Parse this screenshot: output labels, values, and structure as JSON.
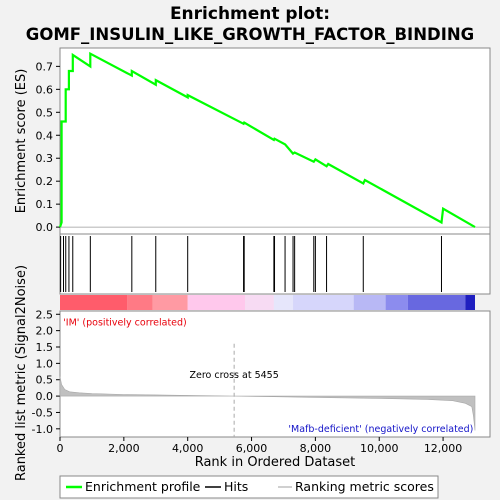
{
  "chart_data": {
    "type": "line",
    "title_line1": "Enrichment plot:",
    "title_line2": "GOMF_INSULIN_LIKE_GROWTH_FACTOR_BINDING",
    "top_panel": {
      "ylabel": "Enrichment score (ES)",
      "ylim": [
        -0.03,
        0.78
      ],
      "yticks": [
        "0.0",
        "0.1",
        "0.2",
        "0.3",
        "0.4",
        "0.5",
        "0.6",
        "0.7"
      ],
      "ytick_values": [
        0.0,
        0.1,
        0.2,
        0.3,
        0.4,
        0.5,
        0.6,
        0.7
      ],
      "series": [
        {
          "name": "Enrichment profile",
          "color": "#00ff00",
          "x": [
            0,
            50,
            50,
            180,
            180,
            280,
            280,
            400,
            400,
            950,
            950,
            2250,
            2250,
            3000,
            3000,
            4000,
            4000,
            5750,
            5770,
            6700,
            6720,
            7050,
            7300,
            7350,
            7950,
            8000,
            8350,
            8400,
            9500,
            9550,
            11950,
            12000,
            13000
          ],
          "y": [
            0.0,
            0.02,
            0.46,
            0.46,
            0.6,
            0.6,
            0.68,
            0.68,
            0.75,
            0.7,
            0.755,
            0.66,
            0.68,
            0.62,
            0.64,
            0.565,
            0.575,
            0.45,
            0.455,
            0.38,
            0.385,
            0.36,
            0.32,
            0.325,
            0.285,
            0.295,
            0.265,
            0.275,
            0.19,
            0.205,
            0.02,
            0.08,
            0.0
          ]
        }
      ]
    },
    "hits": [
      20,
      110,
      180,
      280,
      400,
      950,
      2250,
      3000,
      4000,
      5750,
      5770,
      6700,
      6720,
      7050,
      7300,
      7350,
      7950,
      8000,
      8350,
      9500,
      11950
    ],
    "rank_bar": {
      "segments": [
        {
          "from": 0,
          "to": 2100,
          "color": "#ff5c6b"
        },
        {
          "from": 2100,
          "to": 2900,
          "color": "#ff7a85"
        },
        {
          "from": 2900,
          "to": 4000,
          "color": "#ff9aa3"
        },
        {
          "from": 4000,
          "to": 5800,
          "color": "#ffc8ec"
        },
        {
          "from": 5800,
          "to": 6700,
          "color": "#f7dbf3"
        },
        {
          "from": 6700,
          "to": 7300,
          "color": "#e6e6fb"
        },
        {
          "from": 7300,
          "to": 9200,
          "color": "#d6d6fb"
        },
        {
          "from": 9200,
          "to": 10200,
          "color": "#b8b8f5"
        },
        {
          "from": 10200,
          "to": 10900,
          "color": "#8c8cee"
        },
        {
          "from": 10900,
          "to": 12700,
          "color": "#6868e0"
        },
        {
          "from": 12700,
          "to": 13000,
          "color": "#1f1fc0"
        }
      ]
    },
    "bottom_panel": {
      "ylabel": "Ranked list metric (Signal2Noise)",
      "xlabel": "Rank in Ordered Dataset",
      "ylim": [
        -1.25,
        2.6
      ],
      "yticks": [
        "-1.0",
        "-0.5",
        "0.0",
        "0.5",
        "1.0",
        "1.5",
        "2.0",
        "2.5"
      ],
      "ytick_values": [
        -1.0,
        -0.5,
        0.0,
        0.5,
        1.0,
        1.5,
        2.0,
        2.5
      ],
      "xlim": [
        0,
        13000
      ],
      "xticks": [
        "0",
        "2,000",
        "4,000",
        "6,000",
        "8,000",
        "10,000",
        "12,000"
      ],
      "xtick_values": [
        0,
        2000,
        4000,
        6000,
        8000,
        10000,
        12000
      ],
      "metric_x": [
        0,
        50,
        150,
        300,
        600,
        1000,
        2000,
        3000,
        4000,
        5455,
        6700,
        8000,
        10000,
        11500,
        12300,
        12700,
        12900,
        12950,
        13000
      ],
      "metric_y": [
        0.6,
        0.35,
        0.2,
        0.13,
        0.1,
        0.08,
        0.05,
        0.035,
        0.02,
        0.0,
        -0.02,
        -0.04,
        -0.07,
        -0.1,
        -0.14,
        -0.22,
        -0.32,
        -0.6,
        -1.05
      ],
      "zero_cross_x": 5455,
      "zero_cross_label": "Zero cross at 5455",
      "pos_label": "'IM' (positively correlated)",
      "neg_label": "'Mafb-deficient' (negatively correlated)",
      "pos_color": "#e8000b",
      "neg_color": "#1414c8"
    },
    "legend": [
      {
        "label": "Enrichment profile",
        "color": "#00ff00"
      },
      {
        "label": "Hits",
        "color": "#000000"
      },
      {
        "label": "Ranking metric scores",
        "color": "#c0c0c0"
      }
    ]
  }
}
